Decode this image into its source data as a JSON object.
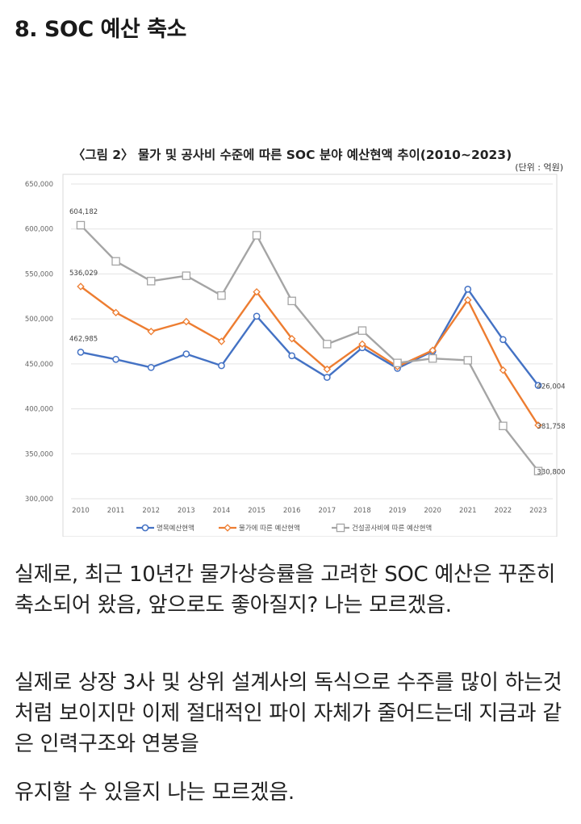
{
  "post": {
    "heading": "8. SOC 예산 축소",
    "paragraphs": [
      "실제로, 최근 10년간 물가상승률을 고려한 SOC 예산은 꾸준히 축소되어 왔음, 앞으로도 좋아질지? 나는 모르겠음.",
      "실제로 상장 3사 및 상위 설계사의 독식으로 수주를 많이 하는것 처럼 보이지만 이제 절대적인 파이 자체가 줄어드는데 지금과 같은 인력구조와 연봉을",
      "유지할 수 있을지 나는 모르겠음."
    ]
  },
  "chart_data": {
    "type": "line",
    "title": "〈그림 2〉 물가 및 공사비 수준에 따른 SOC 분야 예산현액 추이(2010~2023)",
    "unit_note": "(단위 : 억원)",
    "x": [
      "2010",
      "2011",
      "2012",
      "2013",
      "2014",
      "2015",
      "2016",
      "2017",
      "2018",
      "2019",
      "2020",
      "2021",
      "2022",
      "2023"
    ],
    "ylim": [
      300000,
      650000
    ],
    "yticks": [
      "300,000",
      "350,000",
      "400,000",
      "450,000",
      "500,000",
      "550,000",
      "600,000",
      "650,000"
    ],
    "grid": true,
    "legend_position": "bottom",
    "series": [
      {
        "name": "명목예산현액",
        "color": "#4472c4",
        "marker": "circle",
        "values": [
          462985,
          455000,
          446000,
          461000,
          448000,
          503000,
          459000,
          435000,
          468000,
          445000,
          464000,
          533000,
          477000,
          426004
        ],
        "labels": [
          {
            "index": 0,
            "text": "462,985"
          },
          {
            "index": 13,
            "text": "426,004"
          }
        ]
      },
      {
        "name": "물가에 따른 예산현액",
        "color": "#ed7d31",
        "marker": "diamond",
        "values": [
          536029,
          507000,
          486000,
          497000,
          475000,
          530000,
          478000,
          444000,
          472000,
          447000,
          465000,
          521000,
          443000,
          381758
        ],
        "labels": [
          {
            "index": 0,
            "text": "536,029"
          },
          {
            "index": 13,
            "text": "381,758"
          }
        ]
      },
      {
        "name": "건설공사비에 따른 예산현액",
        "color": "#a5a5a5",
        "marker": "square",
        "values": [
          604182,
          564000,
          542000,
          548000,
          526000,
          593000,
          520000,
          472000,
          487000,
          451000,
          456000,
          454000,
          381000,
          330800
        ],
        "labels": [
          {
            "index": 0,
            "text": "604,182"
          },
          {
            "index": 13,
            "text": "330,800"
          }
        ]
      }
    ]
  }
}
